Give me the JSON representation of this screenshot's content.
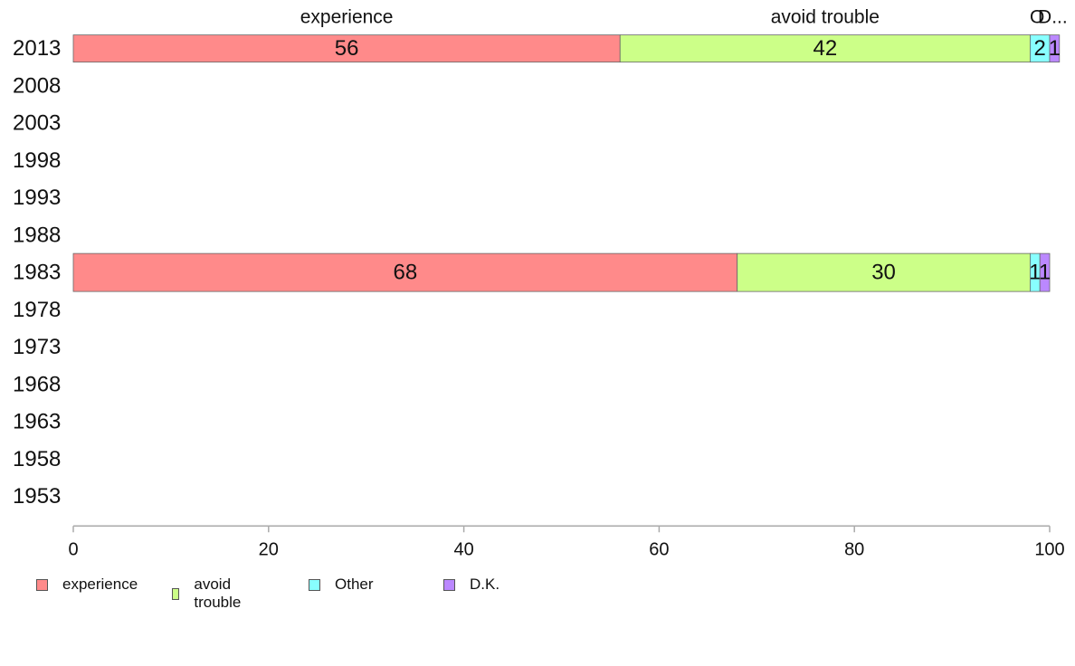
{
  "chart_data": {
    "type": "bar",
    "orientation": "horizontal",
    "stacked": true,
    "categories": [
      "2013",
      "2008",
      "2003",
      "1998",
      "1993",
      "1988",
      "1983",
      "1978",
      "1973",
      "1968",
      "1963",
      "1958",
      "1953"
    ],
    "series": [
      {
        "name": "experience",
        "color": "#ff8a8a",
        "values": [
          56,
          null,
          null,
          null,
          null,
          null,
          68,
          null,
          null,
          null,
          null,
          null,
          null
        ]
      },
      {
        "name": "avoid trouble",
        "color": "#ccff88",
        "values": [
          42,
          null,
          null,
          null,
          null,
          null,
          30,
          null,
          null,
          null,
          null,
          null,
          null
        ]
      },
      {
        "name": "Other",
        "color": "#88ffff",
        "values": [
          2,
          null,
          null,
          null,
          null,
          null,
          1,
          null,
          null,
          null,
          null,
          null,
          null
        ]
      },
      {
        "name": "D.K.",
        "color": "#bb88ff",
        "values": [
          1,
          null,
          null,
          null,
          null,
          null,
          1,
          null,
          null,
          null,
          null,
          null,
          null
        ]
      }
    ],
    "top_labels": [
      "experience",
      "avoid trouble",
      "O",
      "D..."
    ],
    "xlim": [
      0,
      100
    ],
    "x_ticks": [
      0,
      20,
      40,
      60,
      80,
      100
    ],
    "grid": false,
    "legend_position": "bottom-left",
    "title": "",
    "xlabel": "",
    "ylabel": ""
  }
}
